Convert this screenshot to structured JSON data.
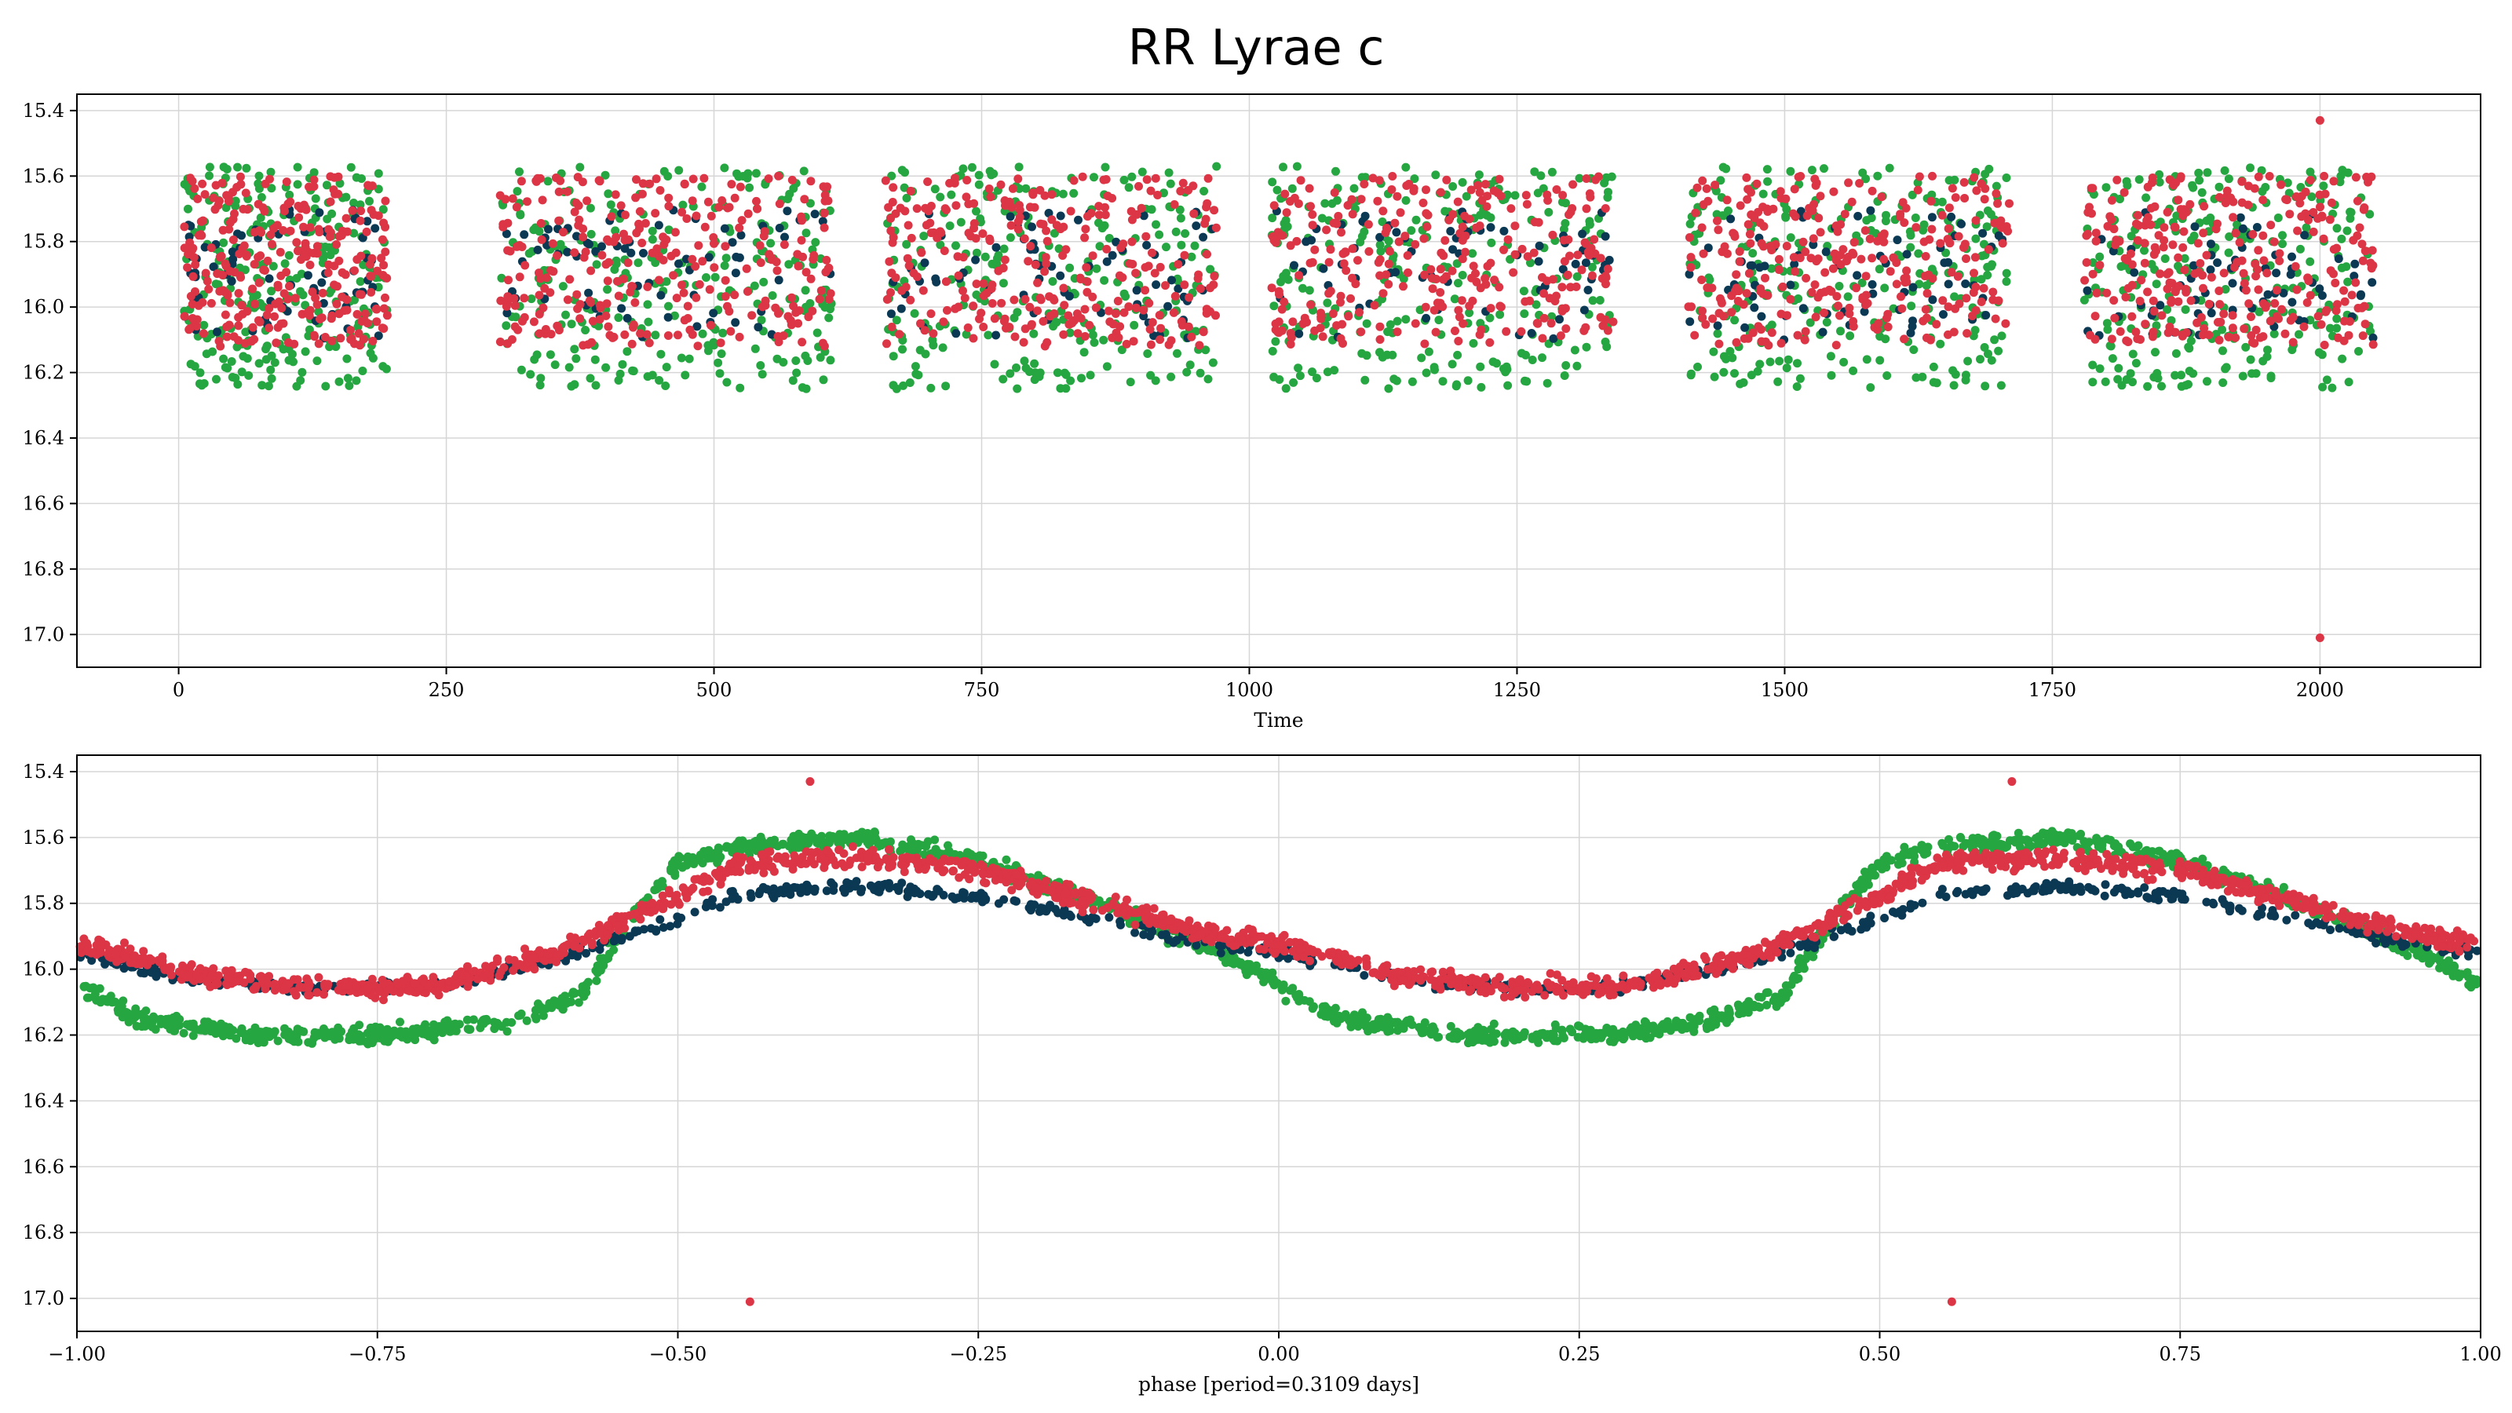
{
  "figure": {
    "suptitle": "RR Lyrae c"
  },
  "colors": {
    "navy": "#0b3954",
    "green": "#26a641",
    "red": "#dc3545",
    "grid": "#d6d6d6"
  },
  "chart_data": [
    {
      "type": "scatter",
      "title": "",
      "xlabel": "Time",
      "ylabel": "",
      "xlim": [
        -95,
        2150
      ],
      "ylim": [
        17.1,
        15.35
      ],
      "y_inverted": true,
      "grid": true,
      "xticks": [
        0,
        250,
        500,
        750,
        1000,
        1250,
        1500,
        1750,
        2000
      ],
      "xtick_labels": [
        "0",
        "250",
        "500",
        "750",
        "1000",
        "1250",
        "1500",
        "1750",
        "2000"
      ],
      "yticks": [
        15.4,
        15.6,
        15.8,
        16.0,
        16.2,
        16.4,
        16.6,
        16.8,
        17.0
      ],
      "ytick_labels": [
        "15.4",
        "15.6",
        "15.8",
        "16.0",
        "16.2",
        "16.4",
        "16.6",
        "16.8",
        "17.0"
      ],
      "observing_seasons_days": [
        [
          5,
          195
        ],
        [
          300,
          610
        ],
        [
          660,
          970
        ],
        [
          1020,
          1340
        ],
        [
          1410,
          1710
        ],
        [
          1780,
          2050
        ]
      ],
      "series": [
        {
          "color": "#26a641",
          "mag_range": [
            15.57,
            16.25
          ],
          "count_per_season": 260
        },
        {
          "color": "#0b3954",
          "mag_range": [
            15.7,
            16.1
          ],
          "count_per_season": 70
        },
        {
          "color": "#dc3545",
          "mag_range": [
            15.6,
            16.12
          ],
          "count_per_season": 280
        }
      ],
      "outliers": [
        {
          "x": 2000,
          "y": 15.43,
          "color": "#dc3545"
        },
        {
          "x": 2000,
          "y": 17.01,
          "color": "#dc3545"
        }
      ]
    },
    {
      "type": "scatter",
      "title": "",
      "xlabel": "phase [period=0.3109 days]",
      "ylabel": "",
      "xlim": [
        -1.0,
        1.0
      ],
      "ylim": [
        17.1,
        15.35
      ],
      "y_inverted": true,
      "grid": true,
      "period_days": 0.3109,
      "xticks": [
        -1.0,
        -0.75,
        -0.5,
        -0.25,
        0.0,
        0.25,
        0.5,
        0.75,
        1.0
      ],
      "xtick_labels": [
        "−1.00",
        "−0.75",
        "−0.50",
        "−0.25",
        "0.00",
        "0.25",
        "0.50",
        "0.75",
        "1.00"
      ],
      "yticks": [
        15.4,
        15.6,
        15.8,
        16.0,
        16.2,
        16.4,
        16.6,
        16.8,
        17.0
      ],
      "ytick_labels": [
        "15.4",
        "15.6",
        "15.8",
        "16.0",
        "16.2",
        "16.4",
        "16.6",
        "16.8",
        "17.0"
      ],
      "series": [
        {
          "color": "#26a641",
          "light_curve": [
            [
              -1.0,
              16.05
            ],
            [
              -0.95,
              16.15
            ],
            [
              -0.85,
              16.2
            ],
            [
              -0.75,
              16.2
            ],
            [
              -0.65,
              16.17
            ],
            [
              -0.58,
              16.08
            ],
            [
              -0.54,
              15.85
            ],
            [
              -0.5,
              15.68
            ],
            [
              -0.45,
              15.63
            ],
            [
              -0.35,
              15.6
            ],
            [
              -0.25,
              15.67
            ],
            [
              -0.15,
              15.8
            ],
            [
              -0.05,
              15.95
            ],
            [
              0.0,
              16.05
            ],
            [
              0.05,
              16.15
            ],
            [
              0.15,
              16.2
            ],
            [
              0.25,
              16.2
            ],
            [
              0.35,
              16.17
            ],
            [
              0.42,
              16.08
            ],
            [
              0.46,
              15.85
            ],
            [
              0.5,
              15.68
            ],
            [
              0.55,
              15.63
            ],
            [
              0.65,
              15.6
            ],
            [
              0.75,
              15.67
            ],
            [
              0.85,
              15.8
            ],
            [
              0.95,
              15.95
            ],
            [
              1.0,
              16.05
            ]
          ]
        },
        {
          "color": "#0b3954",
          "light_curve": [
            [
              -1.0,
              15.95
            ],
            [
              -0.9,
              16.03
            ],
            [
              -0.8,
              16.06
            ],
            [
              -0.7,
              16.05
            ],
            [
              -0.6,
              15.97
            ],
            [
              -0.5,
              15.85
            ],
            [
              -0.45,
              15.77
            ],
            [
              -0.35,
              15.75
            ],
            [
              -0.25,
              15.78
            ],
            [
              -0.15,
              15.85
            ],
            [
              -0.05,
              15.93
            ],
            [
              0.0,
              15.95
            ],
            [
              0.1,
              16.03
            ],
            [
              0.2,
              16.06
            ],
            [
              0.3,
              16.05
            ],
            [
              0.4,
              15.97
            ],
            [
              0.5,
              15.85
            ],
            [
              0.55,
              15.77
            ],
            [
              0.65,
              15.75
            ],
            [
              0.75,
              15.78
            ],
            [
              0.85,
              15.85
            ],
            [
              0.95,
              15.93
            ],
            [
              1.0,
              15.95
            ]
          ]
        },
        {
          "color": "#dc3545",
          "light_curve": [
            [
              -1.0,
              15.92
            ],
            [
              -0.9,
              16.02
            ],
            [
              -0.8,
              16.06
            ],
            [
              -0.7,
              16.05
            ],
            [
              -0.6,
              15.95
            ],
            [
              -0.5,
              15.78
            ],
            [
              -0.45,
              15.68
            ],
            [
              -0.35,
              15.66
            ],
            [
              -0.25,
              15.7
            ],
            [
              -0.15,
              15.8
            ],
            [
              -0.05,
              15.9
            ],
            [
              0.0,
              15.92
            ],
            [
              0.1,
              16.02
            ],
            [
              0.2,
              16.06
            ],
            [
              0.3,
              16.05
            ],
            [
              0.4,
              15.95
            ],
            [
              0.5,
              15.78
            ],
            [
              0.55,
              15.68
            ],
            [
              0.65,
              15.66
            ],
            [
              0.75,
              15.7
            ],
            [
              0.85,
              15.8
            ],
            [
              0.95,
              15.9
            ],
            [
              1.0,
              15.92
            ]
          ]
        }
      ],
      "outliers": [
        {
          "x": -0.44,
          "y": 17.01,
          "color": "#dc3545"
        },
        {
          "x": -0.39,
          "y": 15.43,
          "color": "#dc3545"
        },
        {
          "x": 0.56,
          "y": 17.01,
          "color": "#dc3545"
        },
        {
          "x": 0.61,
          "y": 15.43,
          "color": "#dc3545"
        }
      ]
    }
  ]
}
